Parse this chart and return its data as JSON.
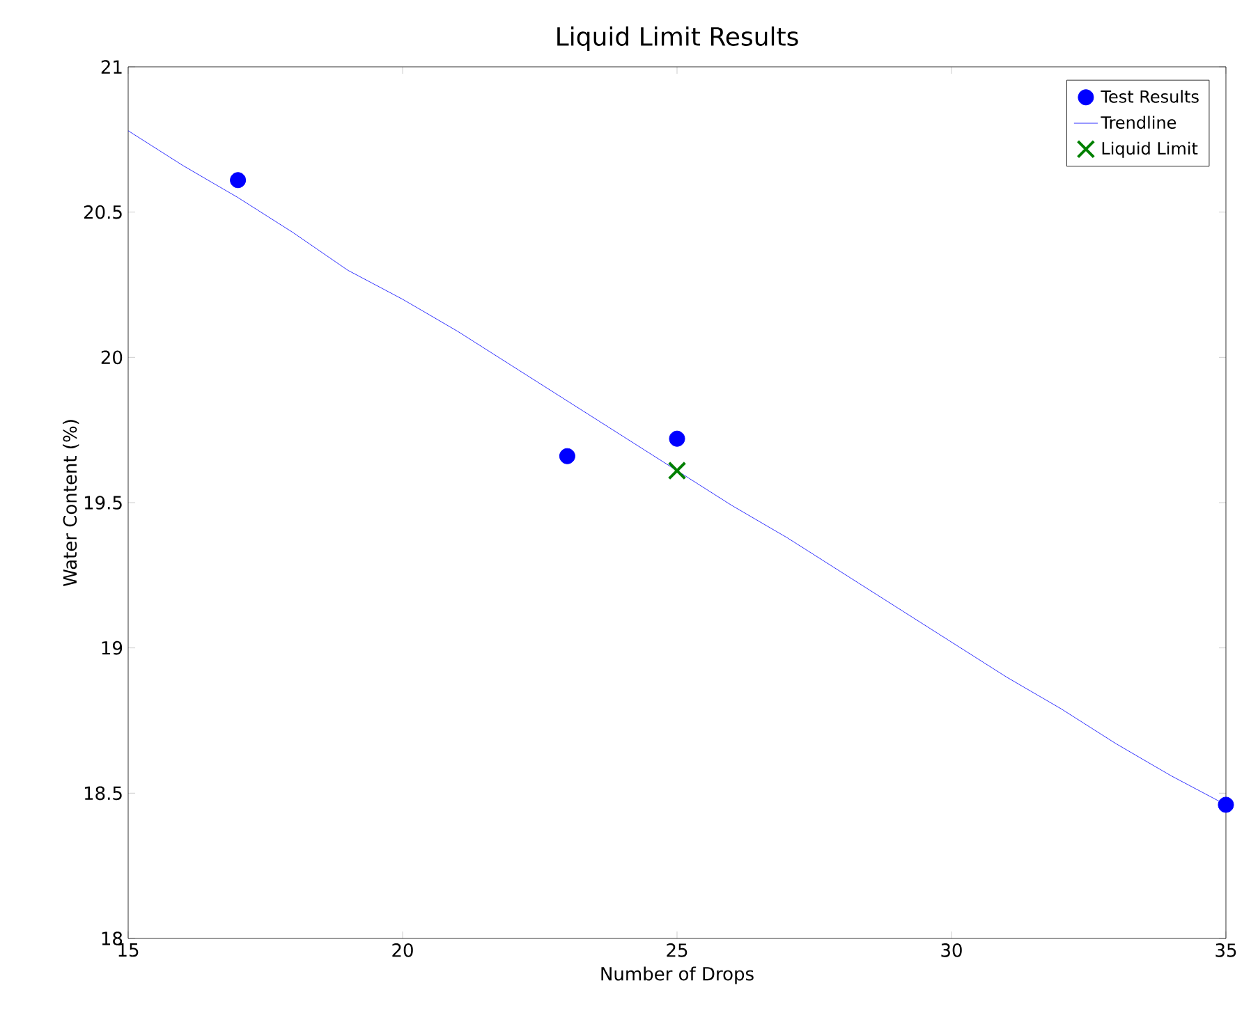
{
  "chart_data": {
    "type": "line",
    "title": "Liquid Limit Results",
    "xlabel": "Number of Drops",
    "ylabel": "Water Content (%)",
    "xlim": [
      15,
      35
    ],
    "xticks": [
      15,
      20,
      25,
      30,
      35
    ],
    "ylim": [
      18,
      21
    ],
    "yticks": [
      18,
      18.5,
      19,
      19.5,
      20,
      20.5,
      21
    ],
    "grid": false,
    "legend": "top right",
    "series": [
      {
        "name": "Test Results",
        "type": "scatter",
        "marker": "circle",
        "color": "#0000ff",
        "x": [
          17,
          23,
          25,
          35
        ],
        "values": [
          20.61,
          19.66,
          19.72,
          18.46
        ]
      },
      {
        "name": "Trendline",
        "marker": "none",
        "color": "#0000ff",
        "x": [
          15,
          16,
          17,
          18,
          19,
          20,
          21,
          22,
          23,
          24,
          25,
          26,
          27,
          28,
          29,
          30,
          31,
          32,
          33,
          34,
          35
        ],
        "values": [
          20.78,
          20.66,
          20.55,
          20.43,
          20.3,
          20.2,
          20.09,
          19.97,
          19.85,
          19.73,
          19.61,
          19.49,
          19.38,
          19.26,
          19.14,
          19.02,
          18.9,
          18.79,
          18.67,
          18.56,
          18.46
        ]
      },
      {
        "name": "Liquid Limit",
        "type": "scatter",
        "marker": "cross",
        "color": "#008000",
        "x": [
          25
        ],
        "values": [
          19.61
        ]
      }
    ]
  }
}
